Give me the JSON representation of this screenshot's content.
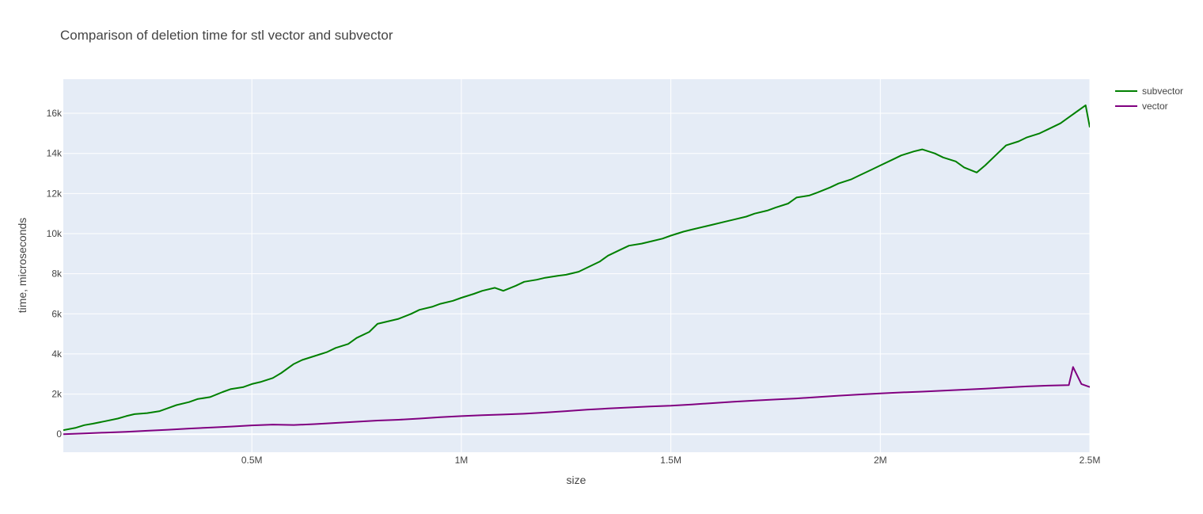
{
  "chart_data": {
    "type": "line",
    "title": "Comparison of deletion time for stl vector and subvector",
    "xlabel": "size",
    "ylabel": "time, microseconds",
    "xlim": [
      50000,
      2500000
    ],
    "ylim": [
      -900,
      17700
    ],
    "grid": true,
    "legend_position": "top-right",
    "x_ticks": [
      {
        "value": 500000,
        "label": "0.5M"
      },
      {
        "value": 1000000,
        "label": "1M"
      },
      {
        "value": 1500000,
        "label": "1.5M"
      },
      {
        "value": 2000000,
        "label": "2M"
      },
      {
        "value": 2500000,
        "label": "2.5M"
      }
    ],
    "y_ticks": [
      {
        "value": 0,
        "label": "0"
      },
      {
        "value": 2000,
        "label": "2k"
      },
      {
        "value": 4000,
        "label": "4k"
      },
      {
        "value": 6000,
        "label": "6k"
      },
      {
        "value": 8000,
        "label": "8k"
      },
      {
        "value": 10000,
        "label": "10k"
      },
      {
        "value": 12000,
        "label": "12k"
      },
      {
        "value": 14000,
        "label": "14k"
      },
      {
        "value": 16000,
        "label": "16k"
      }
    ],
    "series": [
      {
        "name": "subvector",
        "color": "#008000",
        "points": [
          [
            50000,
            200
          ],
          [
            80000,
            320
          ],
          [
            100000,
            450
          ],
          [
            120000,
            520
          ],
          [
            150000,
            650
          ],
          [
            180000,
            780
          ],
          [
            200000,
            900
          ],
          [
            220000,
            1000
          ],
          [
            250000,
            1050
          ],
          [
            280000,
            1150
          ],
          [
            300000,
            1300
          ],
          [
            320000,
            1450
          ],
          [
            350000,
            1600
          ],
          [
            370000,
            1750
          ],
          [
            400000,
            1850
          ],
          [
            430000,
            2100
          ],
          [
            450000,
            2250
          ],
          [
            480000,
            2350
          ],
          [
            500000,
            2500
          ],
          [
            520000,
            2600
          ],
          [
            550000,
            2800
          ],
          [
            570000,
            3050
          ],
          [
            600000,
            3500
          ],
          [
            620000,
            3700
          ],
          [
            650000,
            3900
          ],
          [
            680000,
            4100
          ],
          [
            700000,
            4300
          ],
          [
            730000,
            4500
          ],
          [
            750000,
            4800
          ],
          [
            780000,
            5100
          ],
          [
            800000,
            5500
          ],
          [
            830000,
            5650
          ],
          [
            850000,
            5750
          ],
          [
            880000,
            6000
          ],
          [
            900000,
            6200
          ],
          [
            930000,
            6350
          ],
          [
            950000,
            6500
          ],
          [
            980000,
            6650
          ],
          [
            1000000,
            6800
          ],
          [
            1030000,
            7000
          ],
          [
            1050000,
            7150
          ],
          [
            1080000,
            7300
          ],
          [
            1100000,
            7150
          ],
          [
            1130000,
            7400
          ],
          [
            1150000,
            7600
          ],
          [
            1180000,
            7700
          ],
          [
            1200000,
            7800
          ],
          [
            1230000,
            7900
          ],
          [
            1250000,
            7950
          ],
          [
            1280000,
            8100
          ],
          [
            1300000,
            8300
          ],
          [
            1330000,
            8600
          ],
          [
            1350000,
            8900
          ],
          [
            1380000,
            9200
          ],
          [
            1400000,
            9400
          ],
          [
            1430000,
            9500
          ],
          [
            1450000,
            9600
          ],
          [
            1480000,
            9750
          ],
          [
            1500000,
            9900
          ],
          [
            1530000,
            10100
          ],
          [
            1550000,
            10200
          ],
          [
            1580000,
            10350
          ],
          [
            1600000,
            10450
          ],
          [
            1630000,
            10600
          ],
          [
            1650000,
            10700
          ],
          [
            1680000,
            10850
          ],
          [
            1700000,
            11000
          ],
          [
            1730000,
            11150
          ],
          [
            1750000,
            11300
          ],
          [
            1780000,
            11500
          ],
          [
            1800000,
            11800
          ],
          [
            1830000,
            11900
          ],
          [
            1850000,
            12050
          ],
          [
            1880000,
            12300
          ],
          [
            1900000,
            12500
          ],
          [
            1930000,
            12700
          ],
          [
            1950000,
            12900
          ],
          [
            1980000,
            13200
          ],
          [
            2000000,
            13400
          ],
          [
            2030000,
            13700
          ],
          [
            2050000,
            13900
          ],
          [
            2080000,
            14100
          ],
          [
            2100000,
            14200
          ],
          [
            2130000,
            14000
          ],
          [
            2150000,
            13800
          ],
          [
            2180000,
            13600
          ],
          [
            2200000,
            13300
          ],
          [
            2230000,
            13050
          ],
          [
            2250000,
            13400
          ],
          [
            2280000,
            14000
          ],
          [
            2300000,
            14400
          ],
          [
            2330000,
            14600
          ],
          [
            2350000,
            14800
          ],
          [
            2380000,
            15000
          ],
          [
            2400000,
            15200
          ],
          [
            2430000,
            15500
          ],
          [
            2450000,
            15800
          ],
          [
            2470000,
            16100
          ],
          [
            2490000,
            16400
          ],
          [
            2500000,
            15300
          ]
        ]
      },
      {
        "name": "vector",
        "color": "#800080",
        "points": [
          [
            50000,
            0
          ],
          [
            100000,
            40
          ],
          [
            150000,
            80
          ],
          [
            200000,
            120
          ],
          [
            250000,
            170
          ],
          [
            300000,
            220
          ],
          [
            350000,
            280
          ],
          [
            400000,
            330
          ],
          [
            450000,
            380
          ],
          [
            500000,
            440
          ],
          [
            550000,
            480
          ],
          [
            600000,
            460
          ],
          [
            650000,
            500
          ],
          [
            700000,
            560
          ],
          [
            750000,
            620
          ],
          [
            800000,
            680
          ],
          [
            850000,
            720
          ],
          [
            900000,
            780
          ],
          [
            950000,
            850
          ],
          [
            1000000,
            900
          ],
          [
            1050000,
            950
          ],
          [
            1100000,
            980
          ],
          [
            1150000,
            1020
          ],
          [
            1200000,
            1080
          ],
          [
            1250000,
            1150
          ],
          [
            1300000,
            1220
          ],
          [
            1350000,
            1280
          ],
          [
            1400000,
            1330
          ],
          [
            1450000,
            1380
          ],
          [
            1500000,
            1420
          ],
          [
            1550000,
            1480
          ],
          [
            1600000,
            1550
          ],
          [
            1650000,
            1620
          ],
          [
            1700000,
            1680
          ],
          [
            1750000,
            1730
          ],
          [
            1800000,
            1780
          ],
          [
            1850000,
            1850
          ],
          [
            1900000,
            1920
          ],
          [
            1950000,
            1980
          ],
          [
            2000000,
            2030
          ],
          [
            2050000,
            2080
          ],
          [
            2100000,
            2120
          ],
          [
            2150000,
            2170
          ],
          [
            2200000,
            2220
          ],
          [
            2250000,
            2270
          ],
          [
            2300000,
            2330
          ],
          [
            2350000,
            2380
          ],
          [
            2400000,
            2420
          ],
          [
            2450000,
            2450
          ],
          [
            2460000,
            3350
          ],
          [
            2480000,
            2500
          ],
          [
            2500000,
            2350
          ]
        ]
      }
    ]
  }
}
